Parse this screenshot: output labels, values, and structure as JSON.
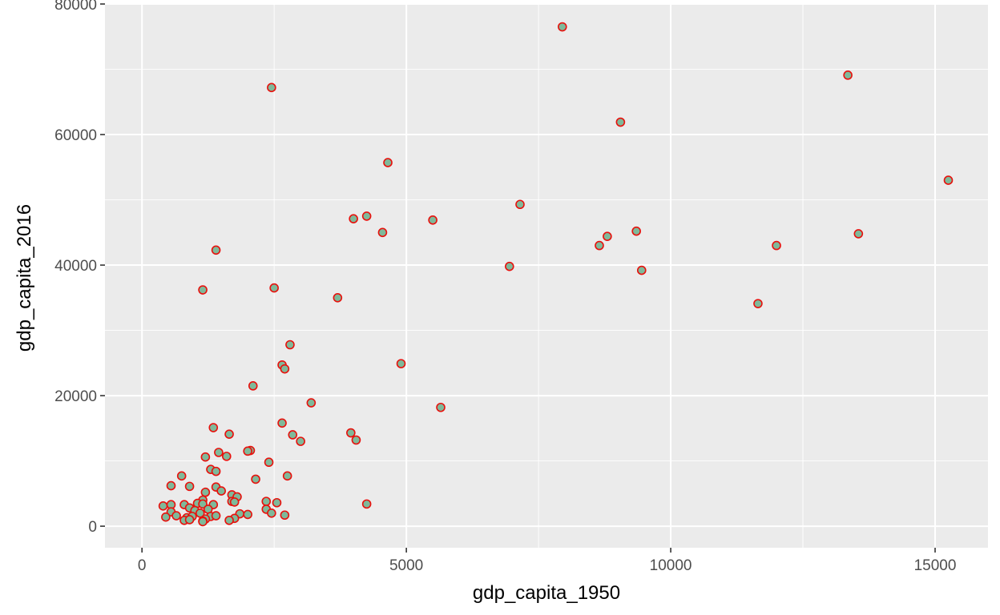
{
  "chart_data": {
    "type": "scatter",
    "title": "",
    "xlabel": "gdp_capita_1950",
    "ylabel": "gdp_capita_2016",
    "xlim": [
      -700,
      16000
    ],
    "ylim": [
      -3300,
      80000
    ],
    "x_ticks": [
      0,
      5000,
      10000,
      15000
    ],
    "x_tick_labels": [
      "0",
      "5000",
      "10000",
      "15000"
    ],
    "y_ticks": [
      0,
      20000,
      40000,
      60000,
      80000
    ],
    "y_tick_labels": [
      "0",
      "20000",
      "40000",
      "60000",
      "80000"
    ],
    "grid": true,
    "legend": "none",
    "colors": {
      "panel": "#ebebeb",
      "grid_major": "#ffffff",
      "point_fill": "#7fb99a",
      "point_stroke": "#e8100c"
    },
    "points": [
      [
        7950,
        76500
      ],
      [
        13350,
        69100
      ],
      [
        2450,
        67200
      ],
      [
        9050,
        61900
      ],
      [
        15250,
        53000
      ],
      [
        4650,
        55700
      ],
      [
        7150,
        49300
      ],
      [
        4250,
        47500
      ],
      [
        4000,
        47100
      ],
      [
        5500,
        46900
      ],
      [
        4550,
        45000
      ],
      [
        9350,
        45200
      ],
      [
        8800,
        44400
      ],
      [
        13550,
        44800
      ],
      [
        8650,
        43000
      ],
      [
        12000,
        43000
      ],
      [
        1400,
        42300
      ],
      [
        6950,
        39800
      ],
      [
        9450,
        39200
      ],
      [
        1150,
        36200
      ],
      [
        2500,
        36500
      ],
      [
        3700,
        35000
      ],
      [
        11650,
        34100
      ],
      [
        2800,
        27800
      ],
      [
        4900,
        24900
      ],
      [
        2650,
        24700
      ],
      [
        2700,
        24100
      ],
      [
        2100,
        21500
      ],
      [
        3200,
        18900
      ],
      [
        5650,
        18200
      ],
      [
        2650,
        15800
      ],
      [
        1350,
        15100
      ],
      [
        1650,
        14100
      ],
      [
        2850,
        14000
      ],
      [
        3950,
        14300
      ],
      [
        4050,
        13200
      ],
      [
        3000,
        13000
      ],
      [
        1450,
        11300
      ],
      [
        2050,
        11600
      ],
      [
        2000,
        11500
      ],
      [
        1200,
        10600
      ],
      [
        1600,
        10700
      ],
      [
        2400,
        9800
      ],
      [
        1300,
        8700
      ],
      [
        1400,
        8400
      ],
      [
        750,
        7700
      ],
      [
        2750,
        7700
      ],
      [
        2150,
        7200
      ],
      [
        550,
        6200
      ],
      [
        900,
        6100
      ],
      [
        1400,
        6000
      ],
      [
        1500,
        5400
      ],
      [
        1200,
        5200
      ],
      [
        1700,
        4800
      ],
      [
        1800,
        4500
      ],
      [
        1150,
        4000
      ],
      [
        1700,
        3800
      ],
      [
        1750,
        3700
      ],
      [
        2350,
        3800
      ],
      [
        2550,
        3600
      ],
      [
        4250,
        3400
      ],
      [
        400,
        3100
      ],
      [
        550,
        3300
      ],
      [
        800,
        3300
      ],
      [
        1050,
        3500
      ],
      [
        1150,
        3400
      ],
      [
        1350,
        3300
      ],
      [
        900,
        2800
      ],
      [
        1250,
        2600
      ],
      [
        1000,
        2400
      ],
      [
        1100,
        2000
      ],
      [
        2350,
        2600
      ],
      [
        2450,
        2000
      ],
      [
        550,
        2200
      ],
      [
        1850,
        1900
      ],
      [
        2000,
        1800
      ],
      [
        2700,
        1700
      ],
      [
        650,
        1600
      ],
      [
        1300,
        1500
      ],
      [
        1400,
        1600
      ],
      [
        450,
        1400
      ],
      [
        850,
        1300
      ],
      [
        950,
        1500
      ],
      [
        1200,
        1100
      ],
      [
        1750,
        1200
      ],
      [
        800,
        900
      ],
      [
        900,
        1000
      ],
      [
        1150,
        800
      ],
      [
        1650,
        900
      ],
      [
        1150,
        700
      ]
    ]
  }
}
